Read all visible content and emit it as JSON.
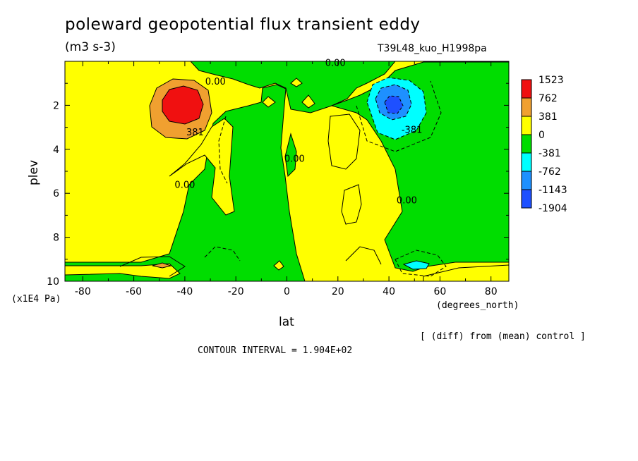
{
  "chart_data": {
    "type": "contour",
    "title": "poleward geopotential flux transient eddy",
    "units": "(m3 s-3)",
    "run_label": "T39L48_kuo_H1998pa",
    "xlabel": "lat",
    "xunits": "(degrees_north)",
    "ylabel": "plev",
    "yunits": "(x1E4 Pa)",
    "xlim": [
      -87,
      87
    ],
    "ylim": [
      10,
      0
    ],
    "x_ticks": [
      -80,
      -60,
      -40,
      -20,
      0,
      20,
      40,
      60,
      80
    ],
    "y_ticks": [
      2,
      4,
      6,
      8,
      10
    ],
    "contour_interval_text": "CONTOUR INTERVAL = 1.904E+02",
    "diff_note": "[ (diff) from (mean) control ]",
    "colorbar": {
      "levels": [
        "1523",
        "762",
        "381",
        "0",
        "-381",
        "-762",
        "-1143",
        "-1904"
      ],
      "colors": [
        "#f01010",
        "#f0a030",
        "#ffff00",
        "#00dd00",
        "#00ffff",
        "#1e90ff",
        "#1e50ff"
      ]
    },
    "contour_labels": [
      {
        "text": "0.00",
        "lat": -28,
        "plev": 0.9
      },
      {
        "text": "0.00",
        "lat": 19,
        "plev": 0.05
      },
      {
        "text": "381",
        "lat": -36,
        "plev": 3.2
      },
      {
        "text": "0.00",
        "lat": -40,
        "plev": 5.6
      },
      {
        "text": "0.00",
        "lat": 3,
        "plev": 4.4
      },
      {
        "text": "0.00",
        "lat": 47,
        "plev": 6.3
      },
      {
        "text": "-381",
        "lat": 49,
        "plev": 3.1
      }
    ],
    "features": [
      {
        "name": "positive maximum",
        "lat": -41,
        "plev": 2.2,
        "value": ">1523"
      },
      {
        "name": "negative minimum",
        "lat": 42,
        "plev": 2.2,
        "value": "<-1143"
      }
    ]
  }
}
